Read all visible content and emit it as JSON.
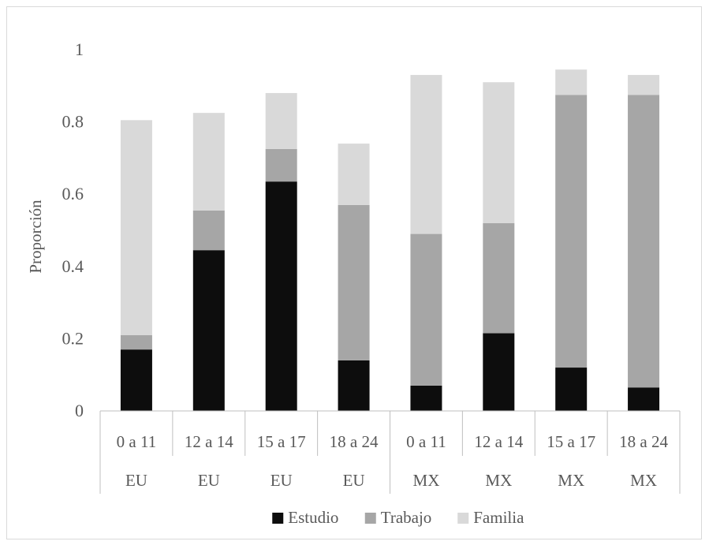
{
  "chart_data": {
    "type": "bar",
    "stacked": true,
    "title": "",
    "xlabel": "",
    "ylabel": "Proporción",
    "ylim": [
      0,
      1
    ],
    "yticks": [
      0,
      0.2,
      0.4,
      0.6,
      0.8,
      1
    ],
    "ytick_labels": [
      "0",
      "0.2",
      "0.4",
      "0.6",
      "0.8",
      "1"
    ],
    "grid": false,
    "legend_position": "bottom",
    "categories": [
      "0 a 11",
      "12 a 14",
      "15 a 17",
      "18 a 24",
      "0 a 11",
      "12 a 14",
      "15 a 17",
      "18 a 24"
    ],
    "groups": [
      {
        "label": "EU",
        "count": 4
      },
      {
        "label": "MX",
        "count": 4
      }
    ],
    "series": [
      {
        "name": "Estudio",
        "color": "#0d0d0d",
        "values": [
          0.17,
          0.445,
          0.635,
          0.14,
          0.07,
          0.215,
          0.12,
          0.065
        ]
      },
      {
        "name": "Trabajo",
        "color": "#a6a6a6",
        "values": [
          0.04,
          0.11,
          0.09,
          0.43,
          0.42,
          0.305,
          0.755,
          0.81
        ]
      },
      {
        "name": "Familia",
        "color": "#d9d9d9",
        "values": [
          0.595,
          0.27,
          0.155,
          0.17,
          0.44,
          0.39,
          0.07,
          0.055
        ]
      }
    ]
  }
}
